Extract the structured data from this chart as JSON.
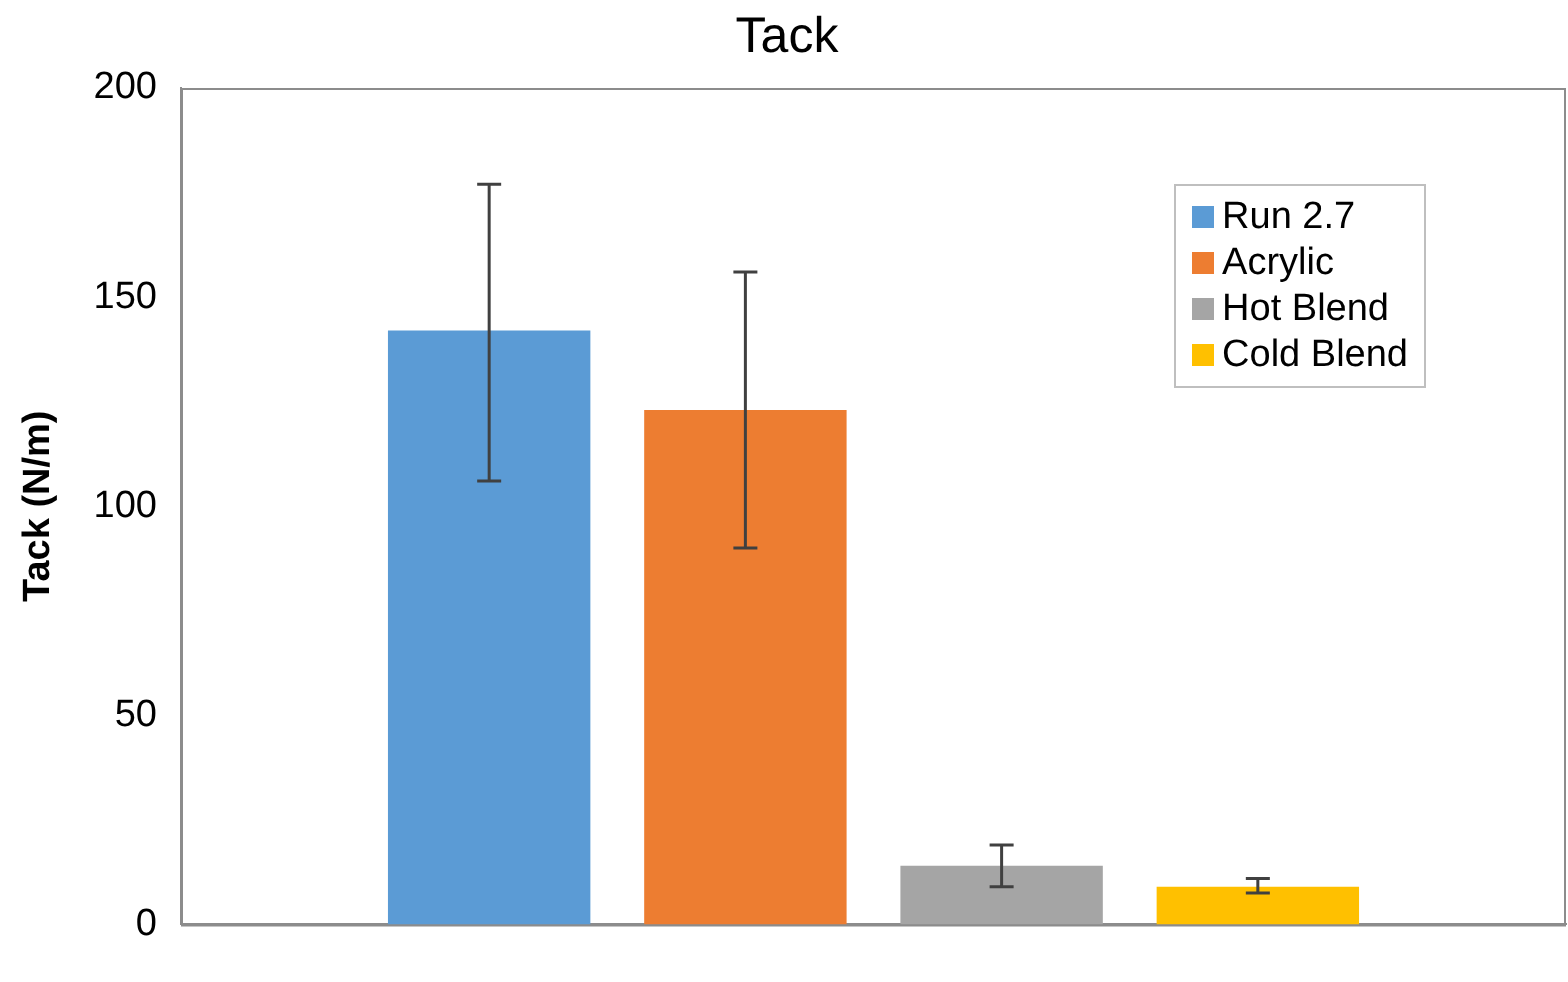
{
  "chart_data": {
    "type": "bar",
    "title": "Tack",
    "ylabel": "Tack (N/m)",
    "categories": [
      null
    ],
    "series": [
      {
        "name": "Run 2.7",
        "color": "#5b9bd5",
        "values": [
          142
        ],
        "errors": [
          [
            106,
            177
          ]
        ]
      },
      {
        "name": "Acrylic",
        "color": "#ed7d31",
        "values": [
          123
        ],
        "errors": [
          [
            90,
            156
          ]
        ]
      },
      {
        "name": "Hot Blend",
        "color": "#a5a5a5",
        "values": [
          14
        ],
        "errors": [
          [
            9,
            19
          ]
        ]
      },
      {
        "name": "Cold Blend",
        "color": "#ffc000",
        "values": [
          9
        ],
        "errors": [
          [
            7.5,
            11
          ]
        ]
      }
    ],
    "ylim": [
      0,
      200
    ],
    "yticks": [
      0,
      50,
      100,
      150,
      200
    ],
    "grid": false,
    "legend": "top right"
  }
}
